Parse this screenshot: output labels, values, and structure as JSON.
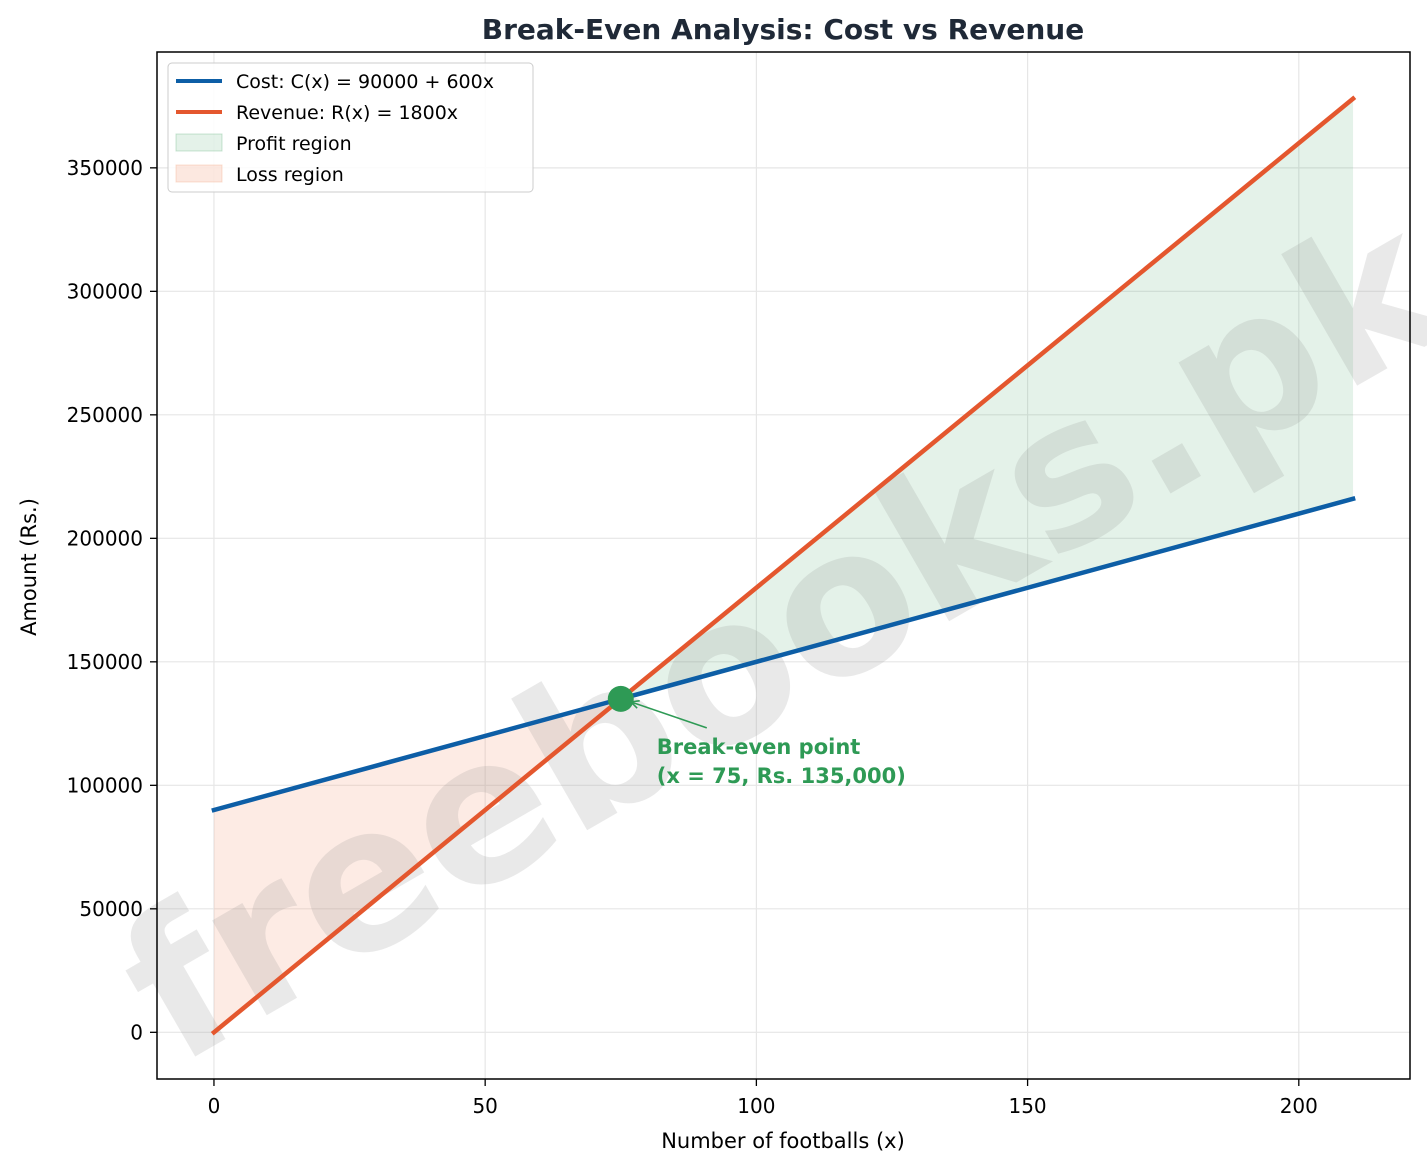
{
  "chart_data": {
    "type": "line",
    "title": "Break-Even Analysis: Cost vs Revenue",
    "xlabel": "Number of footballs (x)",
    "ylabel": "Amount (Rs.)",
    "xlim": [
      -10.5,
      220.5
    ],
    "ylim": [
      -18900,
      396900
    ],
    "x_ticks": [
      0,
      50,
      100,
      150,
      200
    ],
    "y_ticks": [
      0,
      50000,
      100000,
      150000,
      200000,
      250000,
      300000,
      350000
    ],
    "grid": true,
    "legend_position": "top-left",
    "series": [
      {
        "name": "Cost: C(x) = 90000 + 600x",
        "color": "#0d5ea6",
        "x": [
          0,
          75,
          210
        ],
        "values": [
          90000,
          135000,
          216000
        ]
      },
      {
        "name": "Revenue: R(x) = 1800x",
        "color": "#e4572e",
        "x": [
          0,
          75,
          210
        ],
        "values": [
          0,
          135000,
          378000
        ]
      }
    ],
    "regions": [
      {
        "name": "Profit region",
        "color": "#2e9a55",
        "x_from": 75,
        "x_to": 210
      },
      {
        "name": "Loss region",
        "color": "#f4a582",
        "x_from": 0,
        "x_to": 75
      }
    ],
    "break_even": {
      "x": 75,
      "y": 135000,
      "color": "#2e9a55",
      "label_lines": [
        "Break-even point",
        "(x = 75, Rs. 135,000)"
      ]
    },
    "watermark": "freebooks.pk"
  }
}
